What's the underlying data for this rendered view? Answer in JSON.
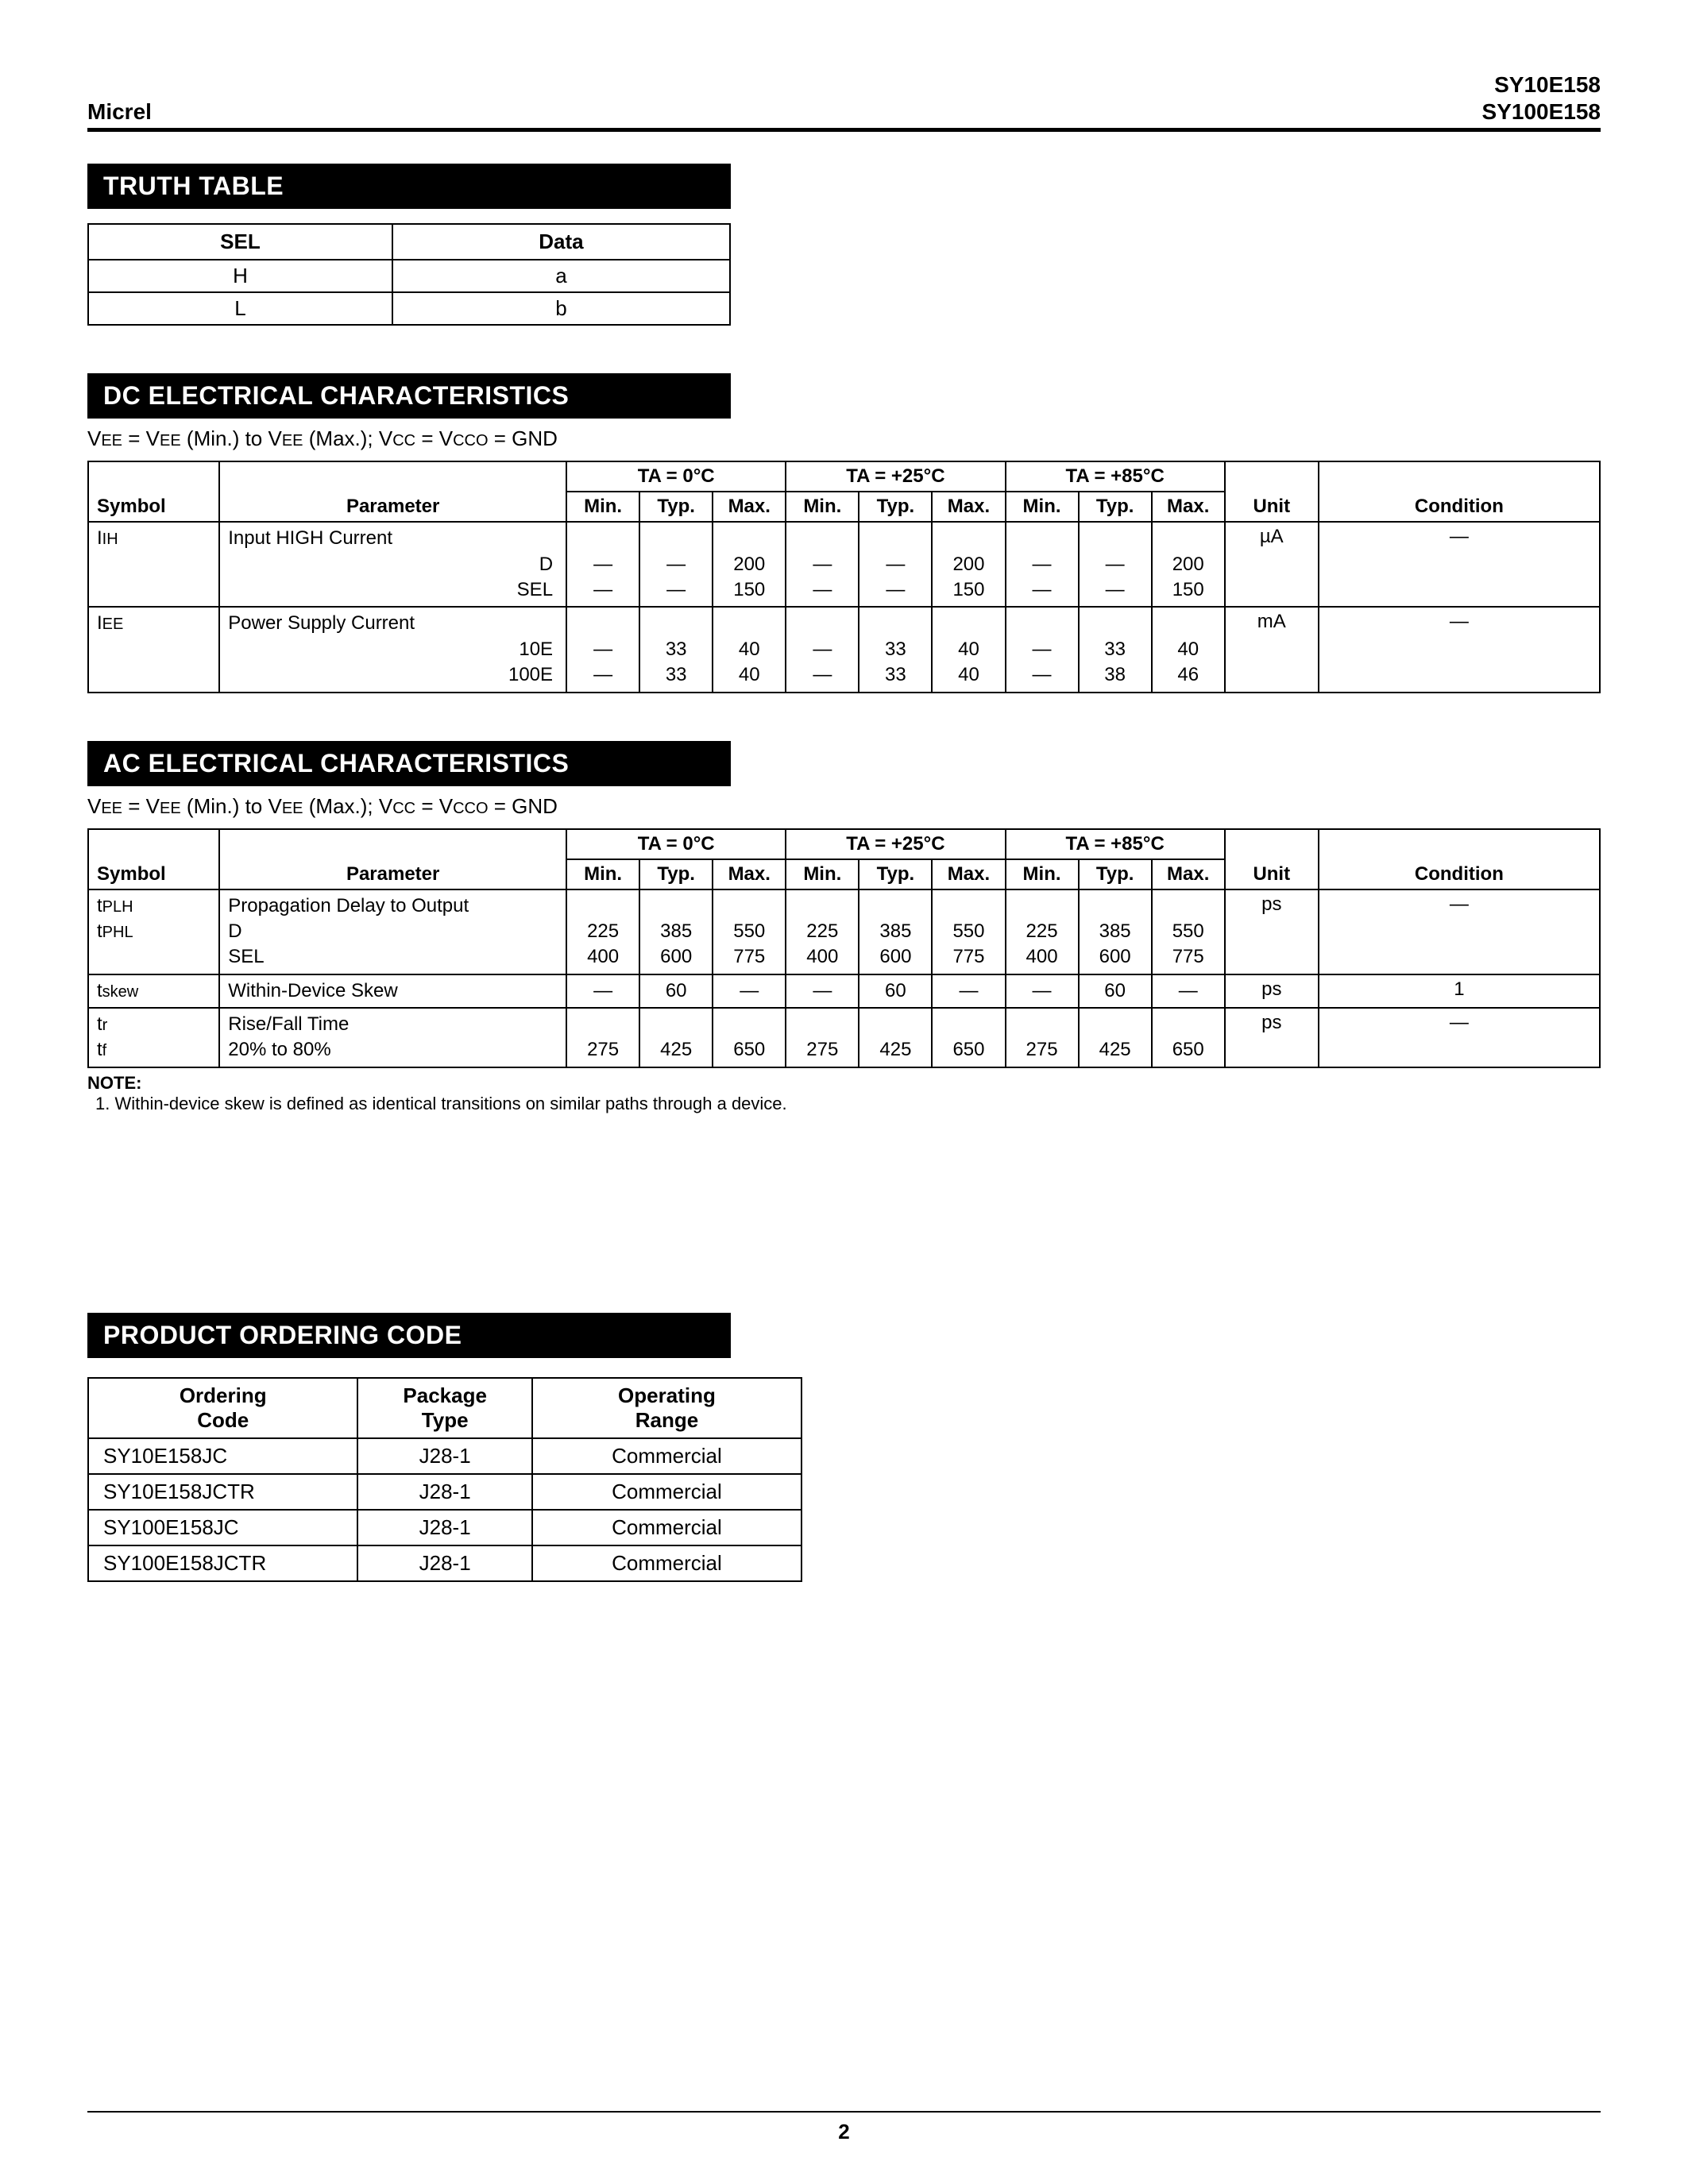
{
  "header": {
    "left": "Micrel",
    "right1": "SY10E158",
    "right2": "SY100E158"
  },
  "truth": {
    "title": "TRUTH TABLE",
    "cols": [
      "SEL",
      "Data"
    ],
    "rows": [
      [
        "H",
        "a"
      ],
      [
        "L",
        "b"
      ]
    ]
  },
  "dc": {
    "title": "DC ELECTRICAL CHARACTERISTICS",
    "condition_line_html": "V<span class='sub-sc'>EE</span> = V<span class='sub-sc'>EE</span> (Min.) to V<span class='sub-sc'>EE</span> (Max.); V<span class='sub-sc'>CC</span> = V<span class='sub-sc'>CCO</span> = GND",
    "temp_headers": [
      "TA = 0°C",
      "TA = +25°C",
      "TA = +85°C"
    ],
    "sub_headers": [
      "Min.",
      "Typ.",
      "Max."
    ],
    "col_labels": {
      "symbol": "Symbol",
      "parameter": "Parameter",
      "unit": "Unit",
      "condition": "Condition"
    },
    "rows": [
      {
        "symbol_html": "I<span class='sub-sc'>IH</span>",
        "param_main": "Input HIGH Current",
        "param_subs": [
          "D",
          "SEL"
        ],
        "t0": [
          [
            "—",
            "—",
            "200"
          ],
          [
            "—",
            "—",
            "150"
          ]
        ],
        "t25": [
          [
            "—",
            "—",
            "200"
          ],
          [
            "—",
            "—",
            "150"
          ]
        ],
        "t85": [
          [
            "—",
            "—",
            "200"
          ],
          [
            "—",
            "—",
            "150"
          ]
        ],
        "unit": "µA",
        "cond": "—"
      },
      {
        "symbol_html": "I<span class='sub-sc'>EE</span>",
        "param_main": "Power Supply Current",
        "param_subs": [
          "10E",
          "100E"
        ],
        "t0": [
          [
            "—",
            "33",
            "40"
          ],
          [
            "—",
            "33",
            "40"
          ]
        ],
        "t25": [
          [
            "—",
            "33",
            "40"
          ],
          [
            "—",
            "33",
            "40"
          ]
        ],
        "t85": [
          [
            "—",
            "33",
            "40"
          ],
          [
            "—",
            "38",
            "46"
          ]
        ],
        "unit": "mA",
        "cond": "—"
      }
    ]
  },
  "ac": {
    "title": "AC ELECTRICAL CHARACTERISTICS",
    "condition_line_html": "V<span class='sub-sc'>EE</span> = V<span class='sub-sc'>EE</span> (Min.) to V<span class='sub-sc'>EE</span> (Max.); V<span class='sub-sc'>CC</span> = V<span class='sub-sc'>CCO</span> = GND",
    "temp_headers": [
      "TA = 0°C",
      "TA = +25°C",
      "TA = +85°C"
    ],
    "sub_headers": [
      "Min.",
      "Typ.",
      "Max."
    ],
    "col_labels": {
      "symbol": "Symbol",
      "parameter": "Parameter",
      "unit": "Unit",
      "condition": "Condition"
    },
    "rows": [
      {
        "symbol_html": "t<span class='sub-sc'>PLH</span><br>t<span class='sub-sc'>PHL</span>",
        "param_main": "Propagation Delay to Output",
        "param_subs": [
          "D",
          "SEL"
        ],
        "param_subs_align": "left",
        "t0": [
          [
            "225",
            "385",
            "550"
          ],
          [
            "400",
            "600",
            "775"
          ]
        ],
        "t25": [
          [
            "225",
            "385",
            "550"
          ],
          [
            "400",
            "600",
            "775"
          ]
        ],
        "t85": [
          [
            "225",
            "385",
            "550"
          ],
          [
            "400",
            "600",
            "775"
          ]
        ],
        "unit": "ps",
        "cond": "—"
      },
      {
        "symbol_html": "t<span class='sub-sc'>skew</span>",
        "param_main": "Within-Device Skew",
        "param_subs": [],
        "t0": [
          [
            "—",
            "60",
            "—"
          ]
        ],
        "t25": [
          [
            "—",
            "60",
            "—"
          ]
        ],
        "t85": [
          [
            "—",
            "60",
            "—"
          ]
        ],
        "unit": "ps",
        "cond": "1"
      },
      {
        "symbol_html": "t<span class='sub-sc'>r</span><br>t<span class='sub-sc'>f</span>",
        "param_main": "Rise/Fall Time",
        "param_subs": [
          "20% to 80%"
        ],
        "param_subs_align": "left",
        "t0": [
          [
            "275",
            "425",
            "650"
          ]
        ],
        "t25": [
          [
            "275",
            "425",
            "650"
          ]
        ],
        "t85": [
          [
            "275",
            "425",
            "650"
          ]
        ],
        "unit": "ps",
        "cond": "—"
      }
    ],
    "note_label": "NOTE:",
    "note_text": "1.  Within-device skew is defined as identical transitions on similar paths through a device."
  },
  "poc": {
    "title": "PRODUCT ORDERING CODE",
    "cols": [
      "Ordering\nCode",
      "Package\nType",
      "Operating\nRange"
    ],
    "rows": [
      [
        "SY10E158JC",
        "J28-1",
        "Commercial"
      ],
      [
        "SY10E158JCTR",
        "J28-1",
        "Commercial"
      ],
      [
        "SY100E158JC",
        "J28-1",
        "Commercial"
      ],
      [
        "SY100E158JCTR",
        "J28-1",
        "Commercial"
      ]
    ]
  },
  "page_number": "2"
}
